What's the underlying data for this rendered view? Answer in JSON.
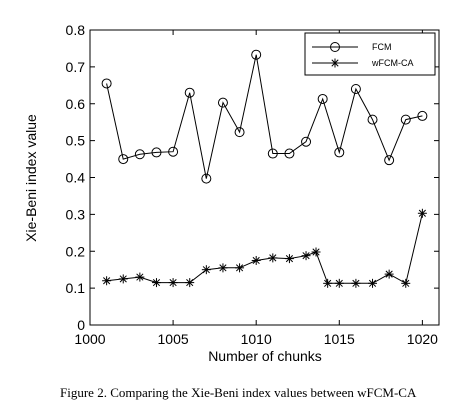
{
  "chart_data": {
    "type": "line",
    "xlabel": "Number of chunks",
    "ylabel": "Xie-Beni index value",
    "xlim": [
      1000,
      1021
    ],
    "ylim": [
      0,
      0.8
    ],
    "xticks": [
      "1000",
      "1005",
      "1010",
      "1015",
      "1020"
    ],
    "yticks": [
      "0",
      "0.1",
      "0.2",
      "0.3",
      "0.4",
      "0.5",
      "0.6",
      "0.7",
      "0.8"
    ],
    "grid": false,
    "legend_position": "top-right",
    "series": [
      {
        "name": "FCM",
        "marker": "circle",
        "x": [
          1001,
          1002,
          1003,
          1004,
          1005,
          1006,
          1007,
          1008,
          1009,
          1010,
          1011,
          1012,
          1013,
          1014,
          1015,
          1016,
          1017,
          1018,
          1019,
          1020
        ],
        "values": [
          0.655,
          0.45,
          0.463,
          0.468,
          0.47,
          0.63,
          0.397,
          0.603,
          0.523,
          0.733,
          0.465,
          0.465,
          0.497,
          0.613,
          0.468,
          0.64,
          0.557,
          0.447,
          0.557,
          0.567
        ]
      },
      {
        "name": "wFCM-CA",
        "marker": "star",
        "x": [
          1001,
          1002,
          1003,
          1004,
          1005,
          1006,
          1007,
          1008,
          1009,
          1010,
          1011,
          1012,
          1013,
          1013.6,
          1014.3,
          1015,
          1016,
          1017,
          1018,
          1019,
          1020
        ],
        "values": [
          0.12,
          0.125,
          0.13,
          0.115,
          0.115,
          0.115,
          0.15,
          0.155,
          0.155,
          0.175,
          0.182,
          0.18,
          0.188,
          0.198,
          0.113,
          0.113,
          0.113,
          0.113,
          0.138,
          0.113,
          0.303
        ]
      }
    ]
  },
  "caption": "Figure 2. Comparing the Xie-Beni index values between wFCM-CA"
}
